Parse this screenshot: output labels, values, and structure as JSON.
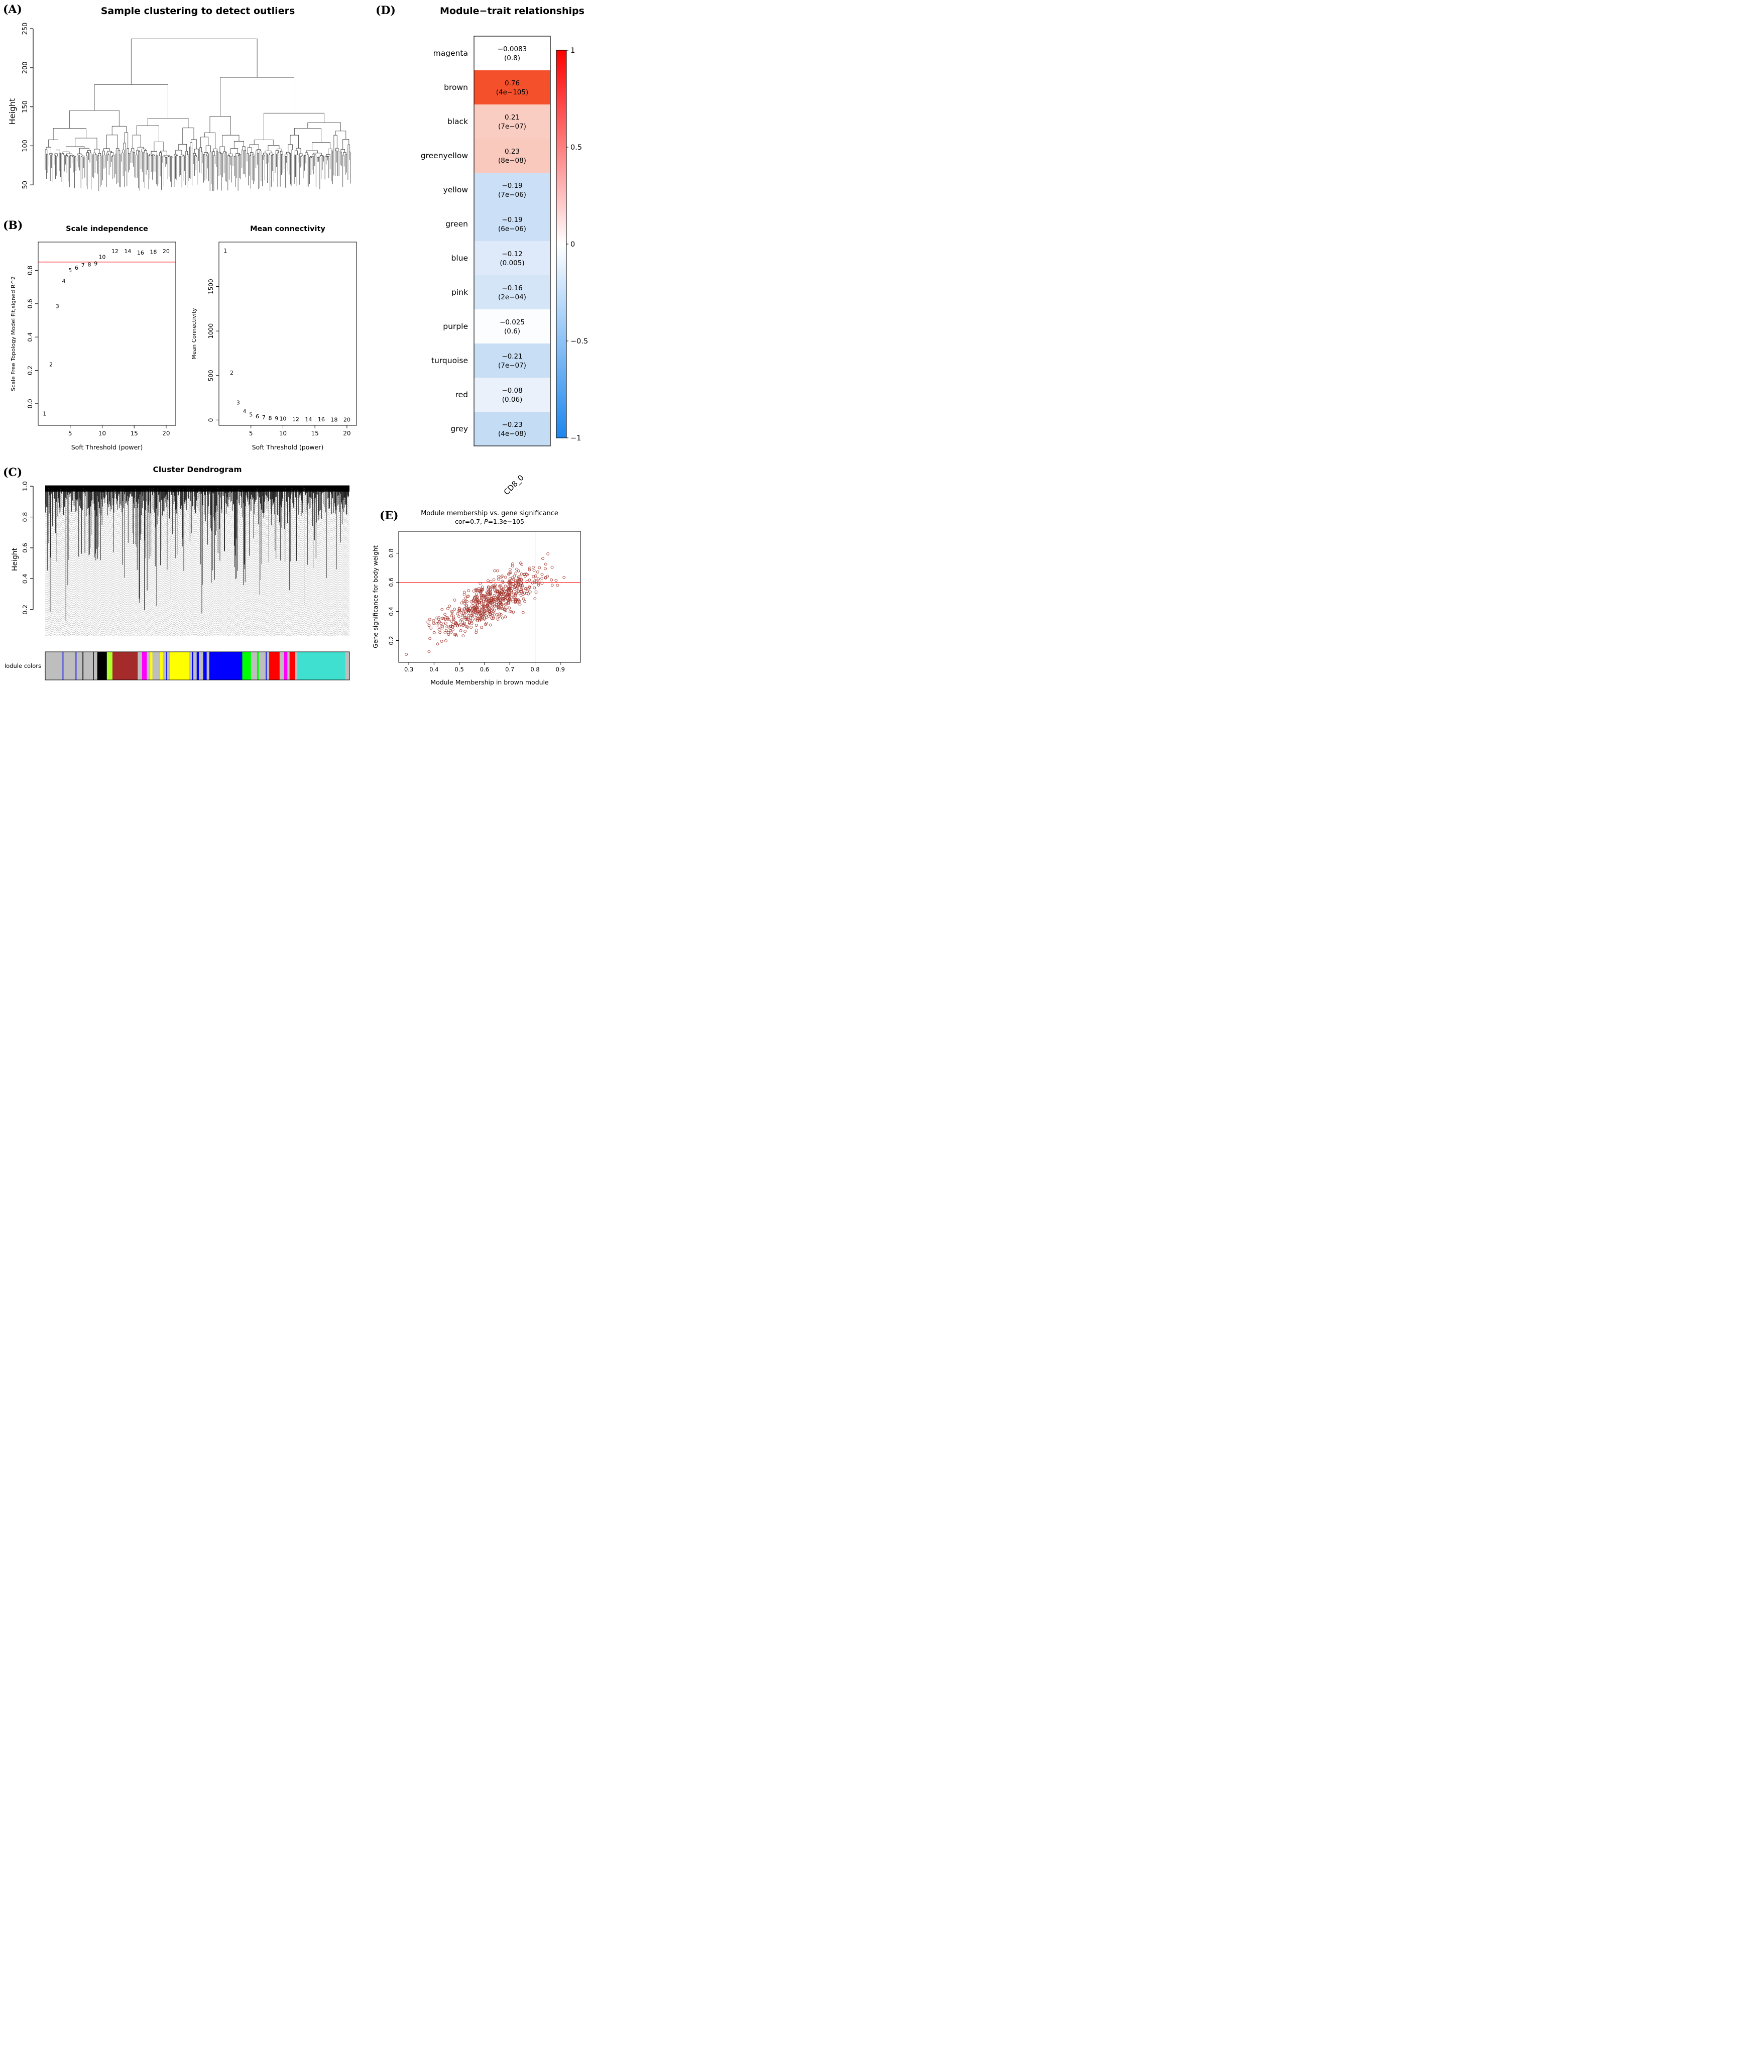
{
  "panel_labels": {
    "A": "(A)",
    "B": "(B)",
    "C": "(C)",
    "D": "(D)",
    "E": "(E)"
  },
  "colors": {
    "point_label_red": "#FF0000",
    "threshold_line_red": "#FF0000",
    "crosshair_red": "#FF0000",
    "scatter_point_brown": "#A03028",
    "dendrogram_line": "#3A3A3A",
    "module_palette": {
      "grey": "#BEBEBE",
      "blue": "#0000FF",
      "black": "#000000",
      "greenyellow": "#ADFF2F",
      "brown": "#A52A2A",
      "magenta": "#FF00FF",
      "yellow": "#FFFF00",
      "green": "#00FF00",
      "red": "#FF0000",
      "turquoise": "#40E0D0"
    }
  },
  "chart_data": [
    {
      "id": "sample_clustering",
      "type": "dendrogram",
      "title": "Sample clustering to detect outliers",
      "ylabel": "Height",
      "ytick_values": [
        50,
        100,
        150,
        200,
        250
      ],
      "ytick_labels": [
        "50",
        "100",
        "150",
        "200",
        "250"
      ],
      "ylim": [
        36,
        252
      ],
      "n_leaves": 240,
      "root_height": 237,
      "leaf_height_range": [
        42,
        82
      ],
      "min_merge_height": 85,
      "seed": 11
    },
    {
      "id": "scale_independence",
      "type": "scatter",
      "title": "Scale independence",
      "xlabel": "Soft Threshold (power)",
      "ylabel": "Scale Free Topology Model Fit,signed R^2",
      "xtick_values": [
        5,
        10,
        15,
        20
      ],
      "xtick_labels": [
        "5",
        "10",
        "15",
        "20"
      ],
      "ytick_values": [
        0,
        0.2,
        0.4,
        0.6,
        0.8
      ],
      "ytick_labels": [
        "0.0",
        "0.2",
        "0.4",
        "0.6",
        "0.8"
      ],
      "xlim": [
        0,
        21.5
      ],
      "ylim": [
        -0.13,
        0.97
      ],
      "point_labels": [
        "1",
        "2",
        "3",
        "4",
        "5",
        "6",
        "7",
        "8",
        "9",
        "10",
        "12",
        "14",
        "16",
        "18",
        "20"
      ],
      "x": [
        1,
        2,
        3,
        4,
        5,
        6,
        7,
        8,
        9,
        10,
        12,
        14,
        16,
        18,
        20
      ],
      "y": [
        -0.06,
        0.235,
        0.585,
        0.735,
        0.8,
        0.815,
        0.83,
        0.835,
        0.84,
        0.88,
        0.915,
        0.915,
        0.905,
        0.91,
        0.915
      ],
      "hline": 0.85
    },
    {
      "id": "mean_connectivity",
      "type": "scatter",
      "title": "Mean connectivity",
      "xlabel": "Soft Threshold (power)",
      "ylabel": "Mean Connectivity",
      "xtick_values": [
        5,
        10,
        15,
        20
      ],
      "xtick_labels": [
        "5",
        "10",
        "15",
        "20"
      ],
      "ytick_values": [
        0,
        500,
        1000,
        1500
      ],
      "ytick_labels": [
        "0",
        "500",
        "1000",
        "1500"
      ],
      "xlim": [
        0,
        21.5
      ],
      "ylim": [
        -60,
        2000
      ],
      "point_labels": [
        "1",
        "2",
        "3",
        "4",
        "5",
        "6",
        "7",
        "8",
        "9",
        "10",
        "12",
        "14",
        "16",
        "18",
        "20"
      ],
      "x": [
        1,
        2,
        3,
        4,
        5,
        6,
        7,
        8,
        9,
        10,
        12,
        14,
        16,
        18,
        20
      ],
      "y": [
        1900,
        530,
        195,
        95,
        58,
        38,
        27,
        20,
        15,
        12,
        8,
        6,
        4,
        3,
        2
      ]
    },
    {
      "id": "module_trait",
      "type": "heatmap",
      "title": "Module−trait relationships",
      "column": "CD8_0",
      "rows": [
        {
          "module": "magenta",
          "value": -0.0083,
          "value_label": "−0.0083",
          "p_label": "(0.8)",
          "color": "#FFFFFF"
        },
        {
          "module": "brown",
          "value": 0.76,
          "value_label": "0.76",
          "p_label": "(4e−105)",
          "color": "#F4502B"
        },
        {
          "module": "black",
          "value": 0.21,
          "value_label": "0.21",
          "p_label": "(7e−07)",
          "color": "#FACDC2"
        },
        {
          "module": "greenyellow",
          "value": 0.23,
          "value_label": "0.23",
          "p_label": "(8e−08)",
          "color": "#F9C9BD"
        },
        {
          "module": "yellow",
          "value": -0.19,
          "value_label": "−0.19",
          "p_label": "(7e−06)",
          "color": "#CBE0F6"
        },
        {
          "module": "green",
          "value": -0.19,
          "value_label": "−0.19",
          "p_label": "(6e−06)",
          "color": "#CBE0F6"
        },
        {
          "module": "blue",
          "value": -0.12,
          "value_label": "−0.12",
          "p_label": "(0.005)",
          "color": "#DEEAF9"
        },
        {
          "module": "pink",
          "value": -0.16,
          "value_label": "−0.16",
          "p_label": "(2e−04)",
          "color": "#D4E5F7"
        },
        {
          "module": "purple",
          "value": -0.025,
          "value_label": "−0.025",
          "p_label": "(0.6)",
          "color": "#FCFDFF"
        },
        {
          "module": "turquoise",
          "value": -0.21,
          "value_label": "−0.21",
          "p_label": "(7e−07)",
          "color": "#C8DEF5"
        },
        {
          "module": "red",
          "value": -0.08,
          "value_label": "−0.08",
          "p_label": "(0.06)",
          "color": "#EAF1FB"
        },
        {
          "module": "grey",
          "value": -0.23,
          "value_label": "−0.23",
          "p_label": "(4e−08)",
          "color": "#C4DCF4"
        }
      ],
      "colorbar": {
        "tick_labels": [
          "1",
          "0.5",
          "0",
          "−0.5",
          "−1"
        ],
        "tick_values": [
          1,
          0.5,
          0,
          -0.5,
          -1
        ],
        "top_color": "#FF0000",
        "mid_color": "#FFFFFF",
        "bottom_color": "#1C86EE"
      }
    },
    {
      "id": "cluster_dendrogram",
      "type": "dendrogram",
      "title": "Cluster Dendrogram",
      "ylabel": "Height",
      "ytick_values": [
        0.2,
        0.4,
        0.6,
        0.8,
        1.0
      ],
      "ytick_labels": [
        "0.2",
        "0.4",
        "0.6",
        "0.8",
        "1.0"
      ],
      "ylim": [
        0.03,
        1.02
      ],
      "n_leaves": 640,
      "seed": 23,
      "module_colors_label": "Module colors",
      "module_segments": [
        [
          "grey",
          40
        ],
        [
          "blue",
          2
        ],
        [
          "grey",
          28
        ],
        [
          "blue",
          2
        ],
        [
          "grey",
          14
        ],
        [
          "black",
          2
        ],
        [
          "grey",
          22
        ],
        [
          "blue",
          2
        ],
        [
          "grey",
          8
        ],
        [
          "black",
          22
        ],
        [
          "greenyellow",
          13
        ],
        [
          "brown",
          58
        ],
        [
          "grey",
          10
        ],
        [
          "magenta",
          11
        ],
        [
          "grey",
          8
        ],
        [
          "yellow",
          5
        ],
        [
          "grey",
          18
        ],
        [
          "yellow",
          6
        ],
        [
          "grey",
          8
        ],
        [
          "blue",
          2
        ],
        [
          "grey",
          6
        ],
        [
          "yellow",
          45
        ],
        [
          "grey",
          6
        ],
        [
          "blue",
          3
        ],
        [
          "grey",
          8
        ],
        [
          "blue",
          5
        ],
        [
          "grey",
          10
        ],
        [
          "blue",
          8
        ],
        [
          "grey",
          6
        ],
        [
          "blue",
          4
        ],
        [
          "blue",
          72
        ],
        [
          "green",
          20
        ],
        [
          "grey",
          14
        ],
        [
          "green",
          4
        ],
        [
          "grey",
          16
        ],
        [
          "blue",
          2
        ],
        [
          "grey",
          6
        ],
        [
          "red",
          24
        ],
        [
          "grey",
          10
        ],
        [
          "magenta",
          8
        ],
        [
          "grey",
          5
        ],
        [
          "red",
          12
        ],
        [
          "grey",
          6
        ],
        [
          "turquoise",
          110
        ],
        [
          "grey",
          10
        ]
      ]
    },
    {
      "id": "mm_gs_scatter",
      "type": "scatter",
      "title": "Module membership vs. gene significance",
      "subtitle_prefix": "cor=0.7, ",
      "subtitle_p": "P",
      "subtitle_suffix": "=1.3e−105",
      "cor": 0.7,
      "xlabel": "Module Membership in brown module",
      "ylabel": "Gene significance for body weight",
      "xtick_values": [
        0.3,
        0.4,
        0.5,
        0.6,
        0.7,
        0.8,
        0.9
      ],
      "xtick_labels": [
        "0.3",
        "0.4",
        "0.5",
        "0.6",
        "0.7",
        "0.8",
        "0.9"
      ],
      "ytick_values": [
        0.2,
        0.4,
        0.6,
        0.8
      ],
      "ytick_labels": [
        "0.2",
        "0.4",
        "0.6",
        "0.8"
      ],
      "xlim": [
        0.26,
        0.98
      ],
      "ylim": [
        0.05,
        0.95
      ],
      "vline": 0.8,
      "hline": 0.6,
      "n_points": 620,
      "seed": 41,
      "extra_points": [
        [
          0.29,
          0.105
        ]
      ]
    }
  ]
}
